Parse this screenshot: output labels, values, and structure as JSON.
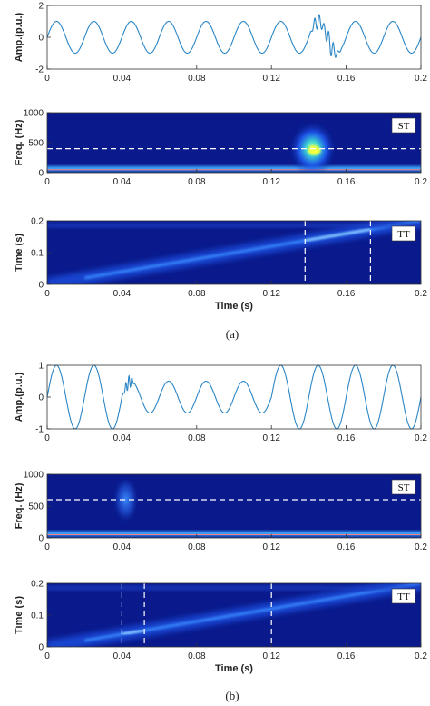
{
  "colors": {
    "signal": "#2a86c6",
    "heatmap_background": "#0a1a8c",
    "heatmap_ridge": "#3a8cff",
    "heatmap_hot": "#f0ff40",
    "reference_line": "#ffffff",
    "low_band": "#ff8080"
  },
  "chart_data": [
    {
      "id": "a_signal",
      "type": "line",
      "ylabel": "Amp.(p.u.)",
      "xlim": [
        0,
        0.2
      ],
      "ylim": [
        -2,
        2
      ],
      "x_ticks": [
        "0",
        "0.04",
        "0.08",
        "0.12",
        "0.16",
        "0.2"
      ],
      "y_ticks": [
        "-2",
        "0",
        "2"
      ],
      "signal": {
        "frequency_hz": 50,
        "amplitude": 1,
        "phase": "sine",
        "disturbance": {
          "start": 0.14,
          "end": 0.158,
          "harmonic_hz": 400,
          "harmonic_amplitude": 0.5
        }
      }
    },
    {
      "id": "a_st",
      "type": "heatmap",
      "ylabel": "Freq. (Hz)",
      "xlim": [
        0,
        0.2
      ],
      "ylim": [
        0,
        1000
      ],
      "x_ticks": [
        "0",
        "0.04",
        "0.08",
        "0.12",
        "0.16",
        "0.2"
      ],
      "y_ticks": [
        "0",
        "500",
        "1000"
      ],
      "tag": "ST",
      "dashed_h": [
        400
      ],
      "low_band_hz": 50,
      "hotspot": {
        "t": 0.142,
        "f": 400
      }
    },
    {
      "id": "a_tt",
      "type": "heatmap",
      "ylabel": "Time (s)",
      "xlabel": "Time (s)",
      "xlim": [
        0,
        0.2
      ],
      "ylim": [
        0,
        0.2
      ],
      "x_ticks": [
        "0",
        "0.04",
        "0.08",
        "0.12",
        "0.16",
        "0.2"
      ],
      "y_ticks": [
        "0",
        "0.1",
        "0.2"
      ],
      "tag": "TT",
      "dashed_v": [
        0.138,
        0.173
      ],
      "bright_segment": [
        0.138,
        0.173
      ]
    },
    {
      "id": "b_signal",
      "type": "line",
      "ylabel": "Amp.(p.u.)",
      "xlim": [
        0,
        0.2
      ],
      "ylim": [
        -1,
        1
      ],
      "x_ticks": [
        "0",
        "0.04",
        "0.08",
        "0.12",
        "0.16",
        "0.2"
      ],
      "y_ticks": [
        "-1",
        "0",
        "1"
      ],
      "signal": {
        "frequency_hz": 50,
        "amplitude": 1,
        "phase": "sine",
        "sag": {
          "start": 0.04,
          "end": 0.12,
          "amplitude": 0.5
        },
        "disturbance": {
          "start": 0.04,
          "end": 0.047,
          "harmonic_hz": 600,
          "harmonic_amplitude": 0.15
        }
      }
    },
    {
      "id": "b_st",
      "type": "heatmap",
      "ylabel": "Freq. (Hz)",
      "xlim": [
        0,
        0.2
      ],
      "ylim": [
        0,
        1000
      ],
      "x_ticks": [
        "0",
        "0.04",
        "0.08",
        "0.12",
        "0.16",
        "0.2"
      ],
      "y_ticks": [
        "0",
        "500",
        "1000"
      ],
      "tag": "ST",
      "dashed_h": [
        600
      ],
      "low_band_hz": 50,
      "hotspot": {
        "t": 0.042,
        "f": 600
      }
    },
    {
      "id": "b_tt",
      "type": "heatmap",
      "ylabel": "Time (s)",
      "xlabel": "Time (s)",
      "xlim": [
        0,
        0.2
      ],
      "ylim": [
        0,
        0.2
      ],
      "x_ticks": [
        "0",
        "0.04",
        "0.08",
        "0.12",
        "0.16",
        "0.2"
      ],
      "y_ticks": [
        "0",
        "0.1",
        "0.2"
      ],
      "tag": "TT",
      "dashed_v": [
        0.04,
        0.052,
        0.12
      ],
      "bright_segment": [
        0.04,
        0.052
      ]
    }
  ],
  "captions": {
    "a": "(a)",
    "b": "(b)"
  }
}
